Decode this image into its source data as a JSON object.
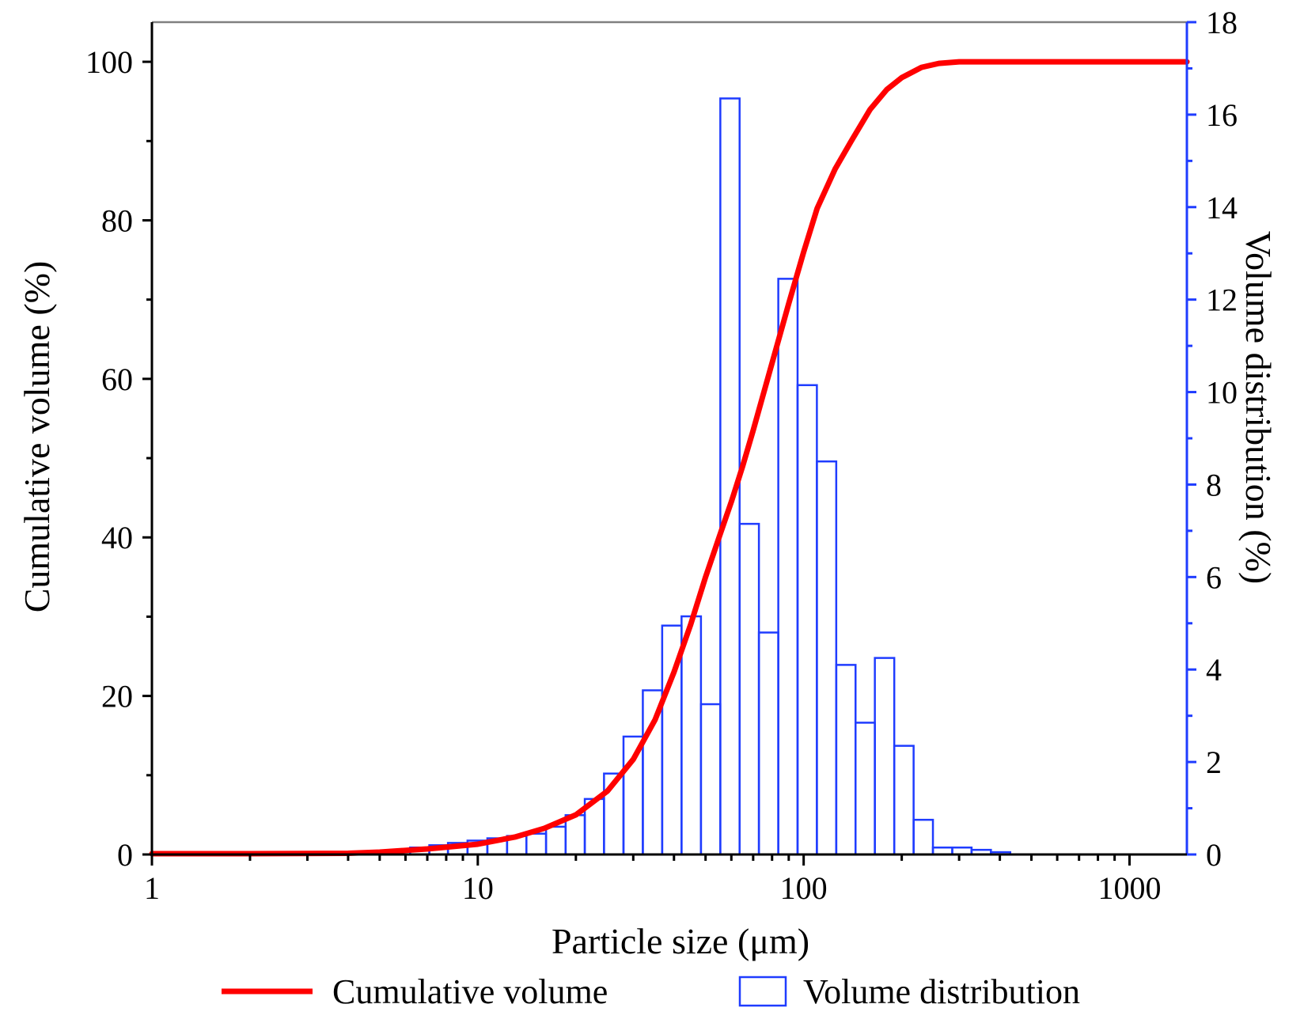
{
  "chart_data": {
    "type": "bar+line",
    "xscale": "log",
    "xlim": [
      1,
      1500
    ],
    "x_ticks": [
      1,
      10,
      100,
      1000
    ],
    "x_tick_labels": [
      "1",
      "10",
      "100",
      "1000"
    ],
    "xlabel": "Particle size (μm)",
    "left_axis": {
      "label": "Cumulative volume (%)",
      "ylim": [
        0,
        105
      ],
      "ticks": [
        0,
        20,
        40,
        60,
        80,
        100
      ],
      "tick_labels": [
        "0",
        "20",
        "40",
        "60",
        "80",
        "100"
      ]
    },
    "right_axis": {
      "label": "Volume distribution (%)",
      "ylim": [
        0,
        18
      ],
      "ticks": [
        0,
        2,
        4,
        6,
        8,
        10,
        12,
        14,
        16,
        18
      ],
      "tick_labels": [
        "0",
        "2",
        "4",
        "6",
        "8",
        "10",
        "12",
        "14",
        "16",
        "18"
      ],
      "color": "#1f3cff"
    },
    "series": [
      {
        "name": "Cumulative volume",
        "type": "line",
        "axis": "left",
        "color": "#ff0000",
        "x": [
          1,
          2,
          4,
          5,
          7,
          10,
          13,
          16,
          20,
          25,
          30,
          35,
          40,
          45,
          50,
          55,
          60,
          65,
          70,
          80,
          90,
          100,
          110,
          125,
          140,
          160,
          180,
          200,
          230,
          260,
          300,
          400,
          600,
          1000,
          1500
        ],
        "y": [
          0.1,
          0.1,
          0.15,
          0.3,
          0.7,
          1.3,
          2.2,
          3.3,
          5.0,
          8.0,
          12.0,
          17.0,
          23.0,
          29.0,
          35.0,
          40.0,
          44.5,
          49.0,
          53.5,
          62.0,
          69.5,
          76.0,
          81.5,
          86.5,
          90.0,
          94.0,
          96.5,
          98.0,
          99.3,
          99.8,
          100.0,
          100.0,
          100.0,
          100.0,
          100.0
        ]
      },
      {
        "name": "Volume distribution",
        "type": "bar",
        "axis": "right",
        "color": "#1f3cff",
        "bin_edges": [
          4.7,
          5.4,
          6.2,
          7.1,
          8.1,
          9.3,
          10.7,
          12.3,
          14.1,
          16.2,
          18.6,
          21.3,
          24.4,
          28.0,
          32.1,
          36.8,
          42.2,
          48.4,
          55.5,
          63.6,
          72.9,
          83.6,
          95.8,
          109.8,
          125.9,
          144.3,
          165.4,
          189.7,
          217.5,
          249.3,
          285.8,
          327.6,
          375.6,
          430.5
        ],
        "values": [
          0.05,
          0.1,
          0.15,
          0.2,
          0.25,
          0.3,
          0.35,
          0.4,
          0.45,
          0.6,
          0.85,
          1.2,
          1.75,
          2.55,
          3.55,
          4.95,
          5.15,
          3.25,
          16.35,
          7.15,
          4.8,
          12.45,
          10.15,
          8.5,
          4.1,
          2.85,
          4.25,
          2.35,
          0.75,
          0.15,
          0.15,
          0.1,
          0.05
        ]
      }
    ],
    "legend": {
      "placement": "bottom",
      "entries": [
        {
          "label": "Cumulative volume",
          "marker": "line",
          "color": "#ff0000"
        },
        {
          "label": "Volume distribution",
          "marker": "hollow-box",
          "color": "#1f3cff"
        }
      ]
    }
  }
}
